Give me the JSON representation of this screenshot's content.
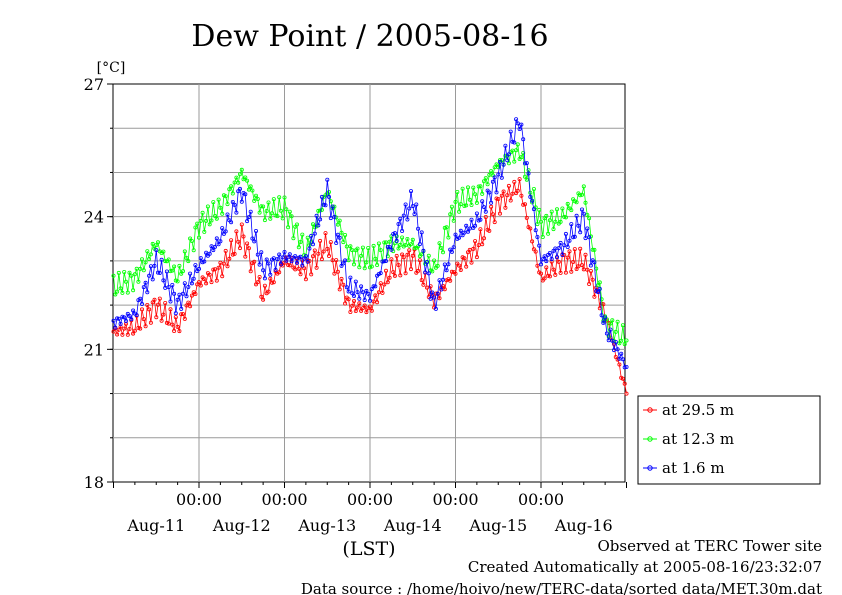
{
  "chart_data": {
    "type": "line",
    "title": "Dew Point / 2005-08-16",
    "ylabel": "[°C]",
    "xlabel": "(LST)",
    "ylim": [
      18,
      27
    ],
    "yticks": [
      "18",
      "21",
      "24",
      "27"
    ],
    "xlim": [
      0,
      6
    ],
    "time_ticks": [
      "00:00",
      "00:00",
      "00:00",
      "00:00",
      "00:00"
    ],
    "day_labels": [
      "Aug-11",
      "Aug-12",
      "Aug-13",
      "Aug-14",
      "Aug-15",
      "Aug-16"
    ],
    "grid": true,
    "legend_position": "right",
    "x_unit": "days since Aug-11 00:00 (LST)",
    "series": [
      {
        "name": "at 29.5 m",
        "color": "#ff0000",
        "x": [
          0.0,
          0.25,
          0.5,
          0.75,
          1.0,
          1.25,
          1.5,
          1.75,
          2.0,
          2.25,
          2.5,
          2.75,
          3.0,
          3.25,
          3.5,
          3.75,
          4.0,
          4.25,
          4.5,
          4.75,
          5.0,
          5.25,
          5.5,
          5.75,
          6.0
        ],
        "y": [
          21.4,
          21.5,
          22.0,
          21.5,
          22.5,
          22.8,
          23.6,
          22.2,
          23.0,
          22.8,
          23.4,
          22.0,
          21.9,
          22.8,
          23.1,
          22.1,
          22.8,
          23.3,
          24.3,
          24.7,
          22.6,
          23.0,
          23.0,
          21.8,
          20.0
        ]
      },
      {
        "name": "at 12.3 m",
        "color": "#00ff00",
        "x": [
          0.0,
          0.25,
          0.5,
          0.75,
          1.0,
          1.25,
          1.5,
          1.75,
          2.0,
          2.25,
          2.5,
          2.75,
          3.0,
          3.25,
          3.5,
          3.75,
          4.0,
          4.25,
          4.5,
          4.75,
          5.0,
          5.25,
          5.5,
          5.75,
          6.0
        ],
        "y": [
          22.4,
          22.6,
          23.4,
          22.6,
          23.8,
          24.2,
          25.0,
          24.1,
          24.2,
          23.2,
          24.6,
          23.2,
          23.0,
          23.4,
          23.4,
          22.8,
          24.3,
          24.5,
          25.2,
          25.5,
          23.8,
          24.0,
          24.6,
          21.6,
          21.2
        ]
      },
      {
        "name": "at 1.6 m",
        "color": "#0000ff",
        "x": [
          0.0,
          0.25,
          0.5,
          0.75,
          1.0,
          1.25,
          1.5,
          1.75,
          2.0,
          2.25,
          2.5,
          2.75,
          3.0,
          3.25,
          3.5,
          3.75,
          4.0,
          4.25,
          4.5,
          4.75,
          5.0,
          5.25,
          5.5,
          5.75,
          6.0
        ],
        "y": [
          21.6,
          21.8,
          23.0,
          22.0,
          22.9,
          23.5,
          24.6,
          22.8,
          23.1,
          23.0,
          24.6,
          22.4,
          22.2,
          23.4,
          24.4,
          22.0,
          23.5,
          23.9,
          24.9,
          26.2,
          23.0,
          23.3,
          24.0,
          21.5,
          20.6
        ]
      }
    ]
  },
  "legend": {
    "items": [
      "at 29.5 m",
      "at 12.3 m",
      "at 1.6 m"
    ]
  },
  "footer": {
    "line1": "Observed at TERC Tower site",
    "line2": "Created Automatically at 2005-08-16/23:32:07",
    "line3": "Data source : /home/hoivo/new/TERC-data/sorted  data/MET.30m.dat"
  }
}
